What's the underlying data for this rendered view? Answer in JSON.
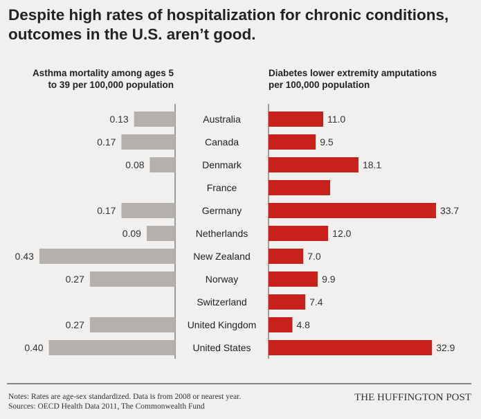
{
  "title_lines": [
    "Despite high rates of hospitalization for chronic conditions,",
    "outcomes in the U.S. aren’t good."
  ],
  "chart_data": [
    {
      "type": "bar",
      "orientation": "horizontal",
      "title_lines": [
        "Asthma mortality among ages 5",
        "to 39 per 100,000 population"
      ],
      "categories": [
        "Australia",
        "Canada",
        "Denmark",
        "France",
        "Germany",
        "Netherlands",
        "New Zealand",
        "Norway",
        "Switzerland",
        "United Kingdom",
        "United States"
      ],
      "values": [
        0.13,
        0.17,
        0.08,
        null,
        0.17,
        0.09,
        0.43,
        0.27,
        null,
        0.27,
        0.4
      ],
      "labels": [
        "0.13",
        "0.17",
        "0.08",
        "",
        "0.17",
        "0.09",
        "0.43",
        "0.27",
        "",
        "0.27",
        "0.40"
      ],
      "direction": "leftward",
      "color": "#b3b0ae"
    },
    {
      "type": "bar",
      "orientation": "horizontal",
      "title_lines": [
        "Diabetes lower extremity amputations",
        "per 100,000 population"
      ],
      "categories": [
        "Australia",
        "Canada",
        "Denmark",
        "France",
        "Germany",
        "Netherlands",
        "New Zealand",
        "Norway",
        "Switzerland",
        "United Kingdom",
        "United States"
      ],
      "values": [
        11.0,
        9.5,
        18.1,
        12.4,
        33.7,
        12.0,
        7.0,
        9.9,
        7.4,
        4.8,
        32.9
      ],
      "labels": [
        "11.0",
        "9.5",
        "18.1",
        "",
        "33.7",
        "12.0",
        "7.0",
        "9.9",
        "7.4",
        "4.8",
        "32.9"
      ],
      "direction": "rightward",
      "color": "#c8211b"
    }
  ],
  "footer": {
    "notes": "Notes: Rates are age-sex standardized. Data is from 2008 or nearest year.",
    "sources": "Sources: OECD Health Data 2011, The Commonwealth Fund",
    "brand": "THE HUFFINGTON POST"
  }
}
